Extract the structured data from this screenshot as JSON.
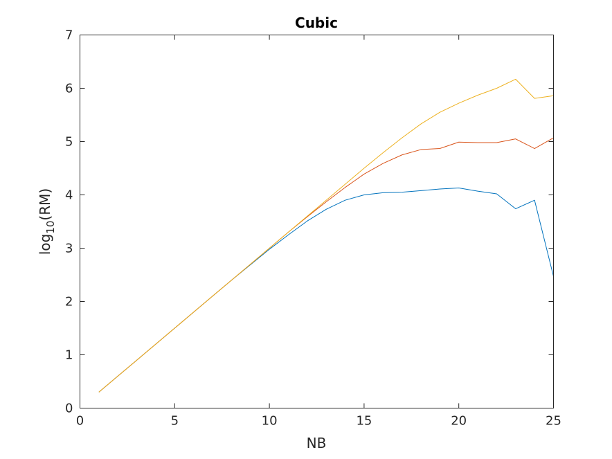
{
  "chart_data": {
    "type": "line",
    "title": "Cubic",
    "xlabel": "NB",
    "ylabel_main": "log",
    "ylabel_sub": "10",
    "ylabel_rest": "(RM)",
    "xlim": [
      0,
      25
    ],
    "ylim": [
      0,
      7
    ],
    "xticks": [
      0,
      5,
      10,
      15,
      20,
      25
    ],
    "yticks": [
      0,
      1,
      2,
      3,
      4,
      5,
      6,
      7
    ],
    "grid": false,
    "series": [
      {
        "color": "#0072BD",
        "x": [
          1,
          2,
          3,
          4,
          5,
          6,
          7,
          8,
          9,
          10,
          11,
          12,
          13,
          14,
          15,
          16,
          17,
          18,
          19,
          20,
          21,
          22,
          23,
          24,
          25
        ],
        "y": [
          0.3,
          0.6,
          0.9,
          1.2,
          1.5,
          1.8,
          2.1,
          2.4,
          2.69,
          2.98,
          3.25,
          3.51,
          3.73,
          3.9,
          4.0,
          4.04,
          4.05,
          4.08,
          4.11,
          4.13,
          4.07,
          4.02,
          3.74,
          3.9,
          2.47
        ]
      },
      {
        "color": "#D95319",
        "x": [
          1,
          2,
          3,
          4,
          5,
          6,
          7,
          8,
          9,
          10,
          11,
          12,
          13,
          14,
          15,
          16,
          17,
          18,
          19,
          20,
          21,
          22,
          23,
          24,
          25
        ],
        "y": [
          0.3,
          0.6,
          0.9,
          1.2,
          1.5,
          1.8,
          2.1,
          2.4,
          2.7,
          3.0,
          3.3,
          3.59,
          3.87,
          4.14,
          4.39,
          4.59,
          4.75,
          4.85,
          4.87,
          4.99,
          4.98,
          4.98,
          5.05,
          4.87,
          5.07
        ]
      },
      {
        "color": "#EDB120",
        "x": [
          1,
          2,
          3,
          4,
          5,
          6,
          7,
          8,
          9,
          10,
          11,
          12,
          13,
          14,
          15,
          16,
          17,
          18,
          19,
          20,
          21,
          22,
          23,
          24,
          25
        ],
        "y": [
          0.3,
          0.6,
          0.9,
          1.2,
          1.5,
          1.8,
          2.1,
          2.4,
          2.7,
          3.0,
          3.3,
          3.6,
          3.9,
          4.2,
          4.5,
          4.79,
          5.07,
          5.33,
          5.55,
          5.72,
          5.87,
          6.0,
          6.17,
          5.81,
          5.86
        ]
      }
    ]
  }
}
